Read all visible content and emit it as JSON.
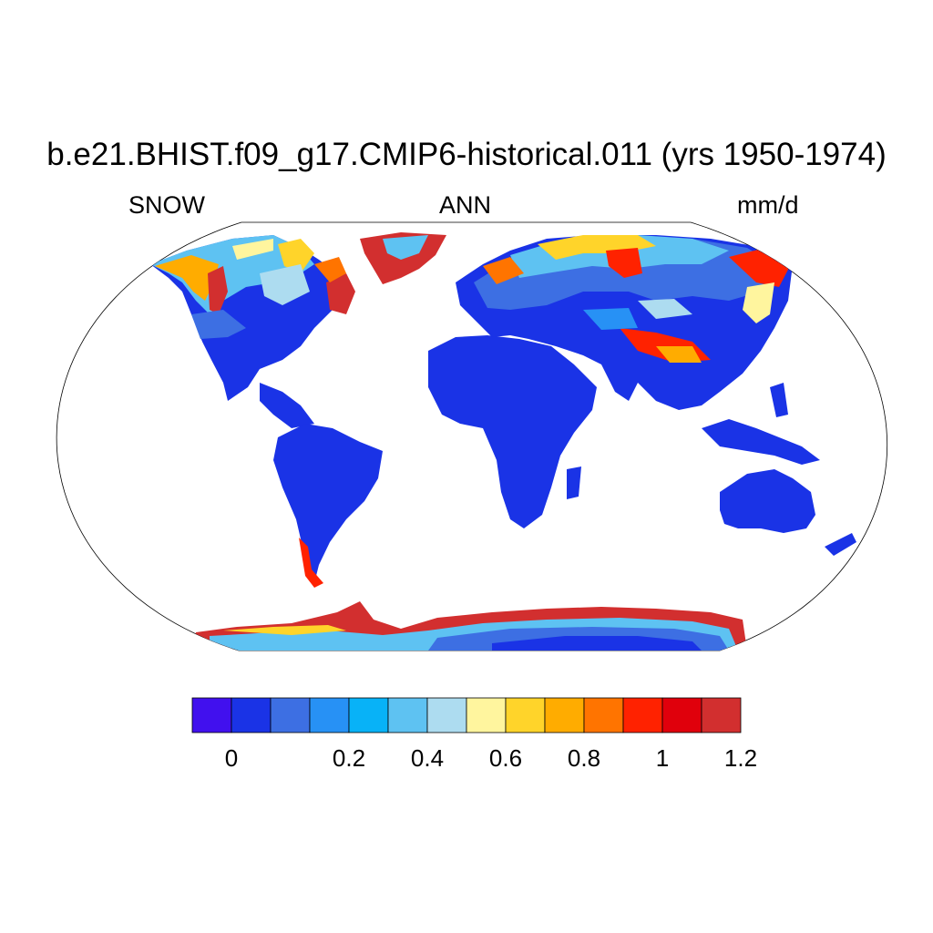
{
  "title": "b.e21.BHIST.f09_g17.CMIP6-historical.011 (yrs 1950-1974)",
  "subtitle_left": "SNOW",
  "subtitle_center": "ANN",
  "subtitle_right": "mm/d",
  "colorbar": {
    "colors": [
      "#4110ee",
      "#1a33e6",
      "#3d6fe3",
      "#2791f5",
      "#08b2f7",
      "#5ec2f2",
      "#addcf0",
      "#fff59e",
      "#ffd42a",
      "#ffac00",
      "#ff7400",
      "#ff2200",
      "#e0000c",
      "#d22f2f"
    ],
    "tick_labels": [
      "0",
      "0.2",
      "0.4",
      "0.6",
      "0.8",
      "1",
      "1.2"
    ],
    "tick_values": [
      0,
      0.2,
      0.4,
      0.6,
      0.8,
      1.0,
      1.2
    ],
    "levels": [
      0.05,
      0.1,
      0.15,
      0.2,
      0.3,
      0.4,
      0.5,
      0.6,
      0.7,
      0.8,
      0.9,
      1.0,
      1.1,
      1.2,
      1.3
    ]
  }
}
